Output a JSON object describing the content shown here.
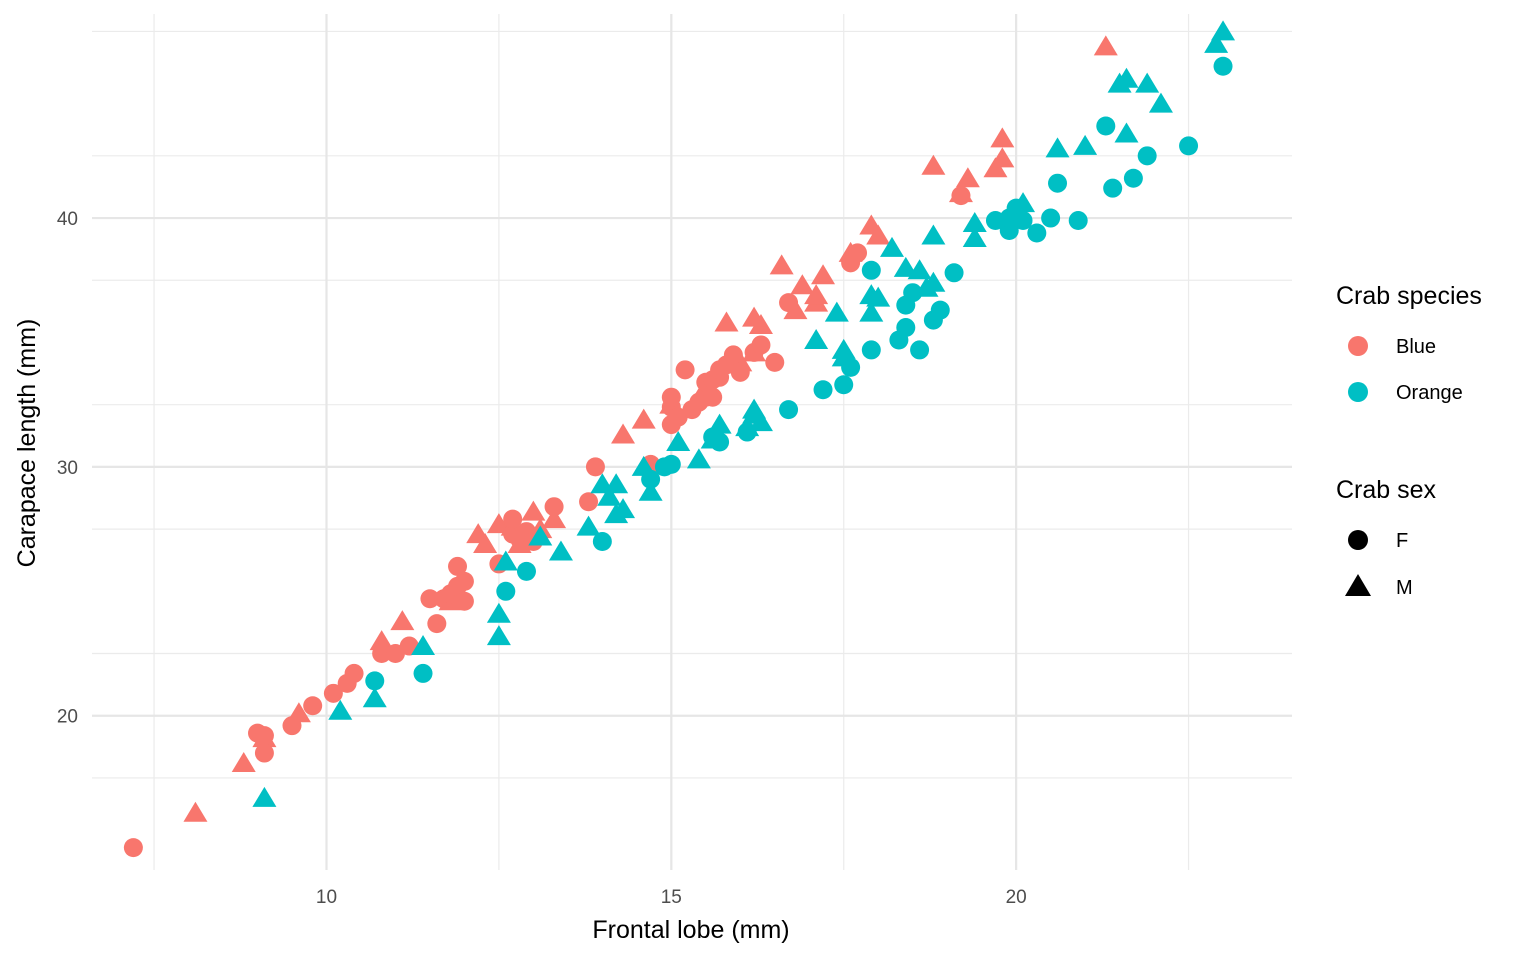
{
  "chart_data": {
    "type": "scatter",
    "xlabel": "Frontal lobe (mm)",
    "ylabel": "Carapace length (mm)",
    "xlim": [
      6.6,
      24.0
    ],
    "ylim": [
      13.8,
      48.2
    ],
    "x_ticks": [
      10,
      15,
      20
    ],
    "y_ticks": [
      20,
      30,
      40
    ],
    "grid": true,
    "legend_position": "right",
    "colors": {
      "Blue": "#F8766D",
      "Orange": "#00BFC4"
    },
    "shapes": {
      "F": "circle",
      "M": "triangle"
    },
    "legend": {
      "color_title": "Crab species",
      "color_items": [
        {
          "label": "Blue",
          "color": "#F8766D"
        },
        {
          "label": "Orange",
          "color": "#00BFC4"
        }
      ],
      "shape_title": "Crab sex",
      "shape_items": [
        {
          "label": "F",
          "shape": "circle"
        },
        {
          "label": "M",
          "shape": "triangle"
        }
      ]
    },
    "series": [
      {
        "name": "Blue M",
        "species": "Blue",
        "sex": "M",
        "points": [
          [
            8.1,
            16.1
          ],
          [
            8.8,
            18.1
          ],
          [
            9.1,
            19.1
          ],
          [
            9.6,
            20.1
          ],
          [
            10.8,
            23.0
          ],
          [
            11.1,
            23.8
          ],
          [
            11.8,
            24.6
          ],
          [
            12.2,
            27.3
          ],
          [
            12.3,
            26.9
          ],
          [
            12.5,
            27.7
          ],
          [
            12.7,
            27.6
          ],
          [
            12.8,
            26.9
          ],
          [
            13.0,
            28.2
          ],
          [
            13.1,
            27.5
          ],
          [
            13.3,
            27.9
          ],
          [
            14.3,
            31.3
          ],
          [
            14.6,
            31.9
          ],
          [
            15.0,
            32.5
          ],
          [
            15.5,
            33.2
          ],
          [
            15.8,
            35.8
          ],
          [
            16.0,
            34.2
          ],
          [
            16.2,
            34.6
          ],
          [
            16.3,
            35.7
          ],
          [
            16.2,
            36.0
          ],
          [
            16.6,
            38.1
          ],
          [
            16.8,
            36.3
          ],
          [
            16.9,
            37.3
          ],
          [
            17.1,
            36.6
          ],
          [
            17.1,
            36.9
          ],
          [
            17.2,
            37.7
          ],
          [
            17.6,
            38.6
          ],
          [
            17.9,
            39.7
          ],
          [
            18.0,
            39.3
          ],
          [
            18.8,
            42.1
          ],
          [
            19.2,
            41.0
          ],
          [
            19.3,
            41.6
          ],
          [
            19.7,
            42.0
          ],
          [
            19.8,
            42.4
          ],
          [
            19.8,
            43.2
          ],
          [
            21.3,
            46.9
          ]
        ]
      },
      {
        "name": "Blue F",
        "species": "Blue",
        "sex": "F",
        "points": [
          [
            7.2,
            14.7
          ],
          [
            9.0,
            19.3
          ],
          [
            9.1,
            19.2
          ],
          [
            9.1,
            18.5
          ],
          [
            9.5,
            19.6
          ],
          [
            9.8,
            20.4
          ],
          [
            10.1,
            20.9
          ],
          [
            10.3,
            21.3
          ],
          [
            10.4,
            21.7
          ],
          [
            10.8,
            22.5
          ],
          [
            11.0,
            22.5
          ],
          [
            11.2,
            22.8
          ],
          [
            11.5,
            24.7
          ],
          [
            11.6,
            23.7
          ],
          [
            11.7,
            24.7
          ],
          [
            11.8,
            24.9
          ],
          [
            11.9,
            25.2
          ],
          [
            11.9,
            26.0
          ],
          [
            12.0,
            25.4
          ],
          [
            12.0,
            24.6
          ],
          [
            12.5,
            26.1
          ],
          [
            12.7,
            27.3
          ],
          [
            12.7,
            27.9
          ],
          [
            12.8,
            27.1
          ],
          [
            12.9,
            27.4
          ],
          [
            13.0,
            27.0
          ],
          [
            13.3,
            28.4
          ],
          [
            13.8,
            28.6
          ],
          [
            13.9,
            30.0
          ],
          [
            14.7,
            30.1
          ],
          [
            15.0,
            31.7
          ],
          [
            15.0,
            32.4
          ],
          [
            15.0,
            32.8
          ],
          [
            15.1,
            32.0
          ],
          [
            15.2,
            33.9
          ],
          [
            15.3,
            32.3
          ],
          [
            15.4,
            32.6
          ],
          [
            15.5,
            32.8
          ],
          [
            15.5,
            33.4
          ],
          [
            15.6,
            33.5
          ],
          [
            15.6,
            32.8
          ],
          [
            15.7,
            33.6
          ],
          [
            15.7,
            33.9
          ],
          [
            15.8,
            34.1
          ],
          [
            15.9,
            34.4
          ],
          [
            15.9,
            34.5
          ],
          [
            16.0,
            33.8
          ],
          [
            16.2,
            34.6
          ],
          [
            16.3,
            34.9
          ],
          [
            16.5,
            34.2
          ],
          [
            16.7,
            36.6
          ],
          [
            17.6,
            38.2
          ],
          [
            17.7,
            38.6
          ],
          [
            19.2,
            40.9
          ]
        ]
      },
      {
        "name": "Orange M",
        "species": "Orange",
        "sex": "M",
        "points": [
          [
            9.1,
            16.7
          ],
          [
            10.2,
            20.2
          ],
          [
            10.7,
            20.7
          ],
          [
            11.4,
            22.8
          ],
          [
            12.5,
            24.1
          ],
          [
            12.5,
            23.2
          ],
          [
            12.6,
            26.2
          ],
          [
            13.1,
            27.2
          ],
          [
            13.4,
            26.6
          ],
          [
            13.8,
            27.6
          ],
          [
            14.0,
            29.3
          ],
          [
            14.1,
            28.8
          ],
          [
            14.2,
            29.3
          ],
          [
            14.2,
            28.1
          ],
          [
            14.3,
            28.3
          ],
          [
            14.6,
            30.0
          ],
          [
            14.7,
            29.0
          ],
          [
            15.1,
            31.0
          ],
          [
            15.4,
            30.3
          ],
          [
            15.6,
            31.1
          ],
          [
            15.7,
            31.7
          ],
          [
            16.1,
            31.6
          ],
          [
            16.2,
            32.3
          ],
          [
            16.2,
            32.1
          ],
          [
            16.3,
            31.8
          ],
          [
            17.1,
            35.1
          ],
          [
            17.4,
            36.2
          ],
          [
            17.5,
            34.4
          ],
          [
            17.5,
            34.7
          ],
          [
            17.9,
            36.2
          ],
          [
            17.9,
            36.9
          ],
          [
            18.0,
            36.8
          ],
          [
            18.2,
            38.8
          ],
          [
            18.4,
            38.0
          ],
          [
            18.6,
            37.9
          ],
          [
            18.7,
            37.2
          ],
          [
            18.8,
            37.4
          ],
          [
            18.8,
            39.3
          ],
          [
            19.4,
            39.2
          ],
          [
            19.4,
            39.8
          ],
          [
            20.0,
            40.2
          ],
          [
            20.1,
            40.6
          ],
          [
            20.6,
            42.8
          ],
          [
            21.0,
            42.9
          ],
          [
            21.5,
            45.4
          ],
          [
            21.6,
            43.4
          ],
          [
            21.6,
            45.6
          ],
          [
            21.9,
            45.4
          ],
          [
            22.1,
            44.6
          ],
          [
            22.9,
            47.0
          ],
          [
            23.0,
            47.5
          ]
        ]
      },
      {
        "name": "Orange F",
        "species": "Orange",
        "sex": "F",
        "points": [
          [
            10.7,
            21.4
          ],
          [
            11.4,
            21.7
          ],
          [
            12.6,
            25.0
          ],
          [
            12.9,
            25.8
          ],
          [
            14.0,
            27.0
          ],
          [
            14.7,
            29.5
          ],
          [
            14.9,
            30.0
          ],
          [
            15.0,
            30.1
          ],
          [
            15.6,
            31.2
          ],
          [
            15.7,
            31.0
          ],
          [
            16.1,
            31.4
          ],
          [
            16.7,
            32.3
          ],
          [
            17.2,
            33.1
          ],
          [
            17.5,
            33.3
          ],
          [
            17.6,
            34.0
          ],
          [
            17.9,
            37.9
          ],
          [
            17.9,
            34.7
          ],
          [
            18.3,
            35.1
          ],
          [
            18.4,
            35.6
          ],
          [
            18.4,
            36.5
          ],
          [
            18.5,
            37.0
          ],
          [
            18.6,
            34.7
          ],
          [
            18.8,
            35.9
          ],
          [
            18.9,
            36.3
          ],
          [
            19.1,
            37.8
          ],
          [
            19.7,
            39.9
          ],
          [
            19.9,
            39.5
          ],
          [
            19.9,
            40.0
          ],
          [
            20.0,
            40.4
          ],
          [
            20.1,
            39.9
          ],
          [
            20.3,
            39.4
          ],
          [
            20.5,
            40.0
          ],
          [
            20.6,
            41.4
          ],
          [
            20.9,
            39.9
          ],
          [
            21.3,
            43.7
          ],
          [
            21.4,
            41.2
          ],
          [
            21.7,
            41.6
          ],
          [
            21.9,
            42.5
          ],
          [
            22.5,
            42.9
          ],
          [
            23.0,
            46.1
          ]
        ]
      }
    ]
  }
}
